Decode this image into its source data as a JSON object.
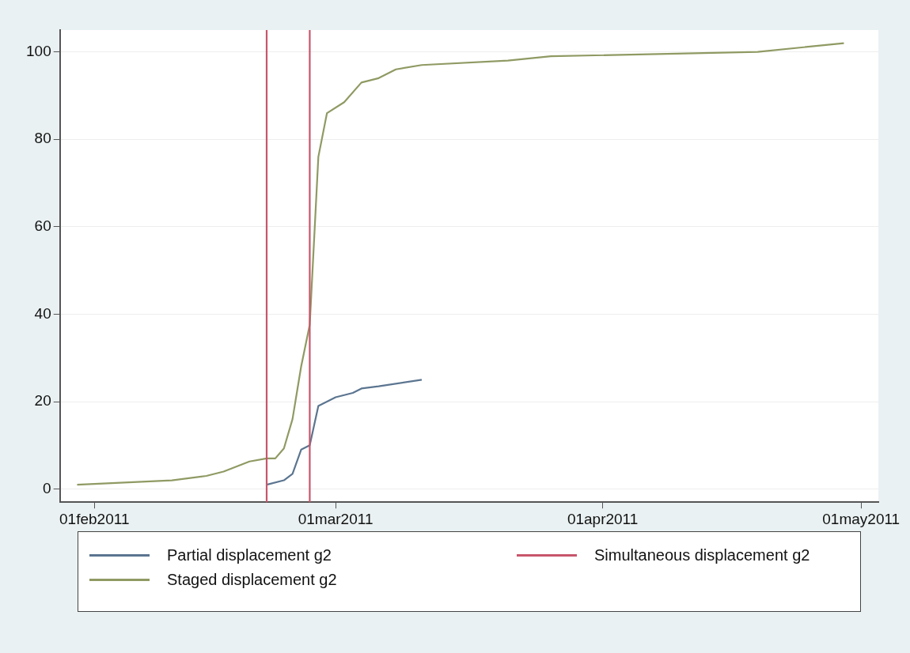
{
  "chart_data": {
    "type": "line",
    "xlim": [
      "2011-01-28",
      "2011-05-03"
    ],
    "xticks": [
      {
        "value": "2011-02-01",
        "label": "01feb2011"
      },
      {
        "value": "2011-03-01",
        "label": "01mar2011"
      },
      {
        "value": "2011-04-01",
        "label": "01apr2011"
      },
      {
        "value": "2011-05-01",
        "label": "01may2011"
      }
    ],
    "ylim": [
      -3,
      105
    ],
    "yticks": [
      0,
      20,
      40,
      60,
      80,
      100
    ],
    "grid": "y",
    "legend": "bottom",
    "marker": "none",
    "line_style": "solid",
    "series": [
      {
        "name": "Partial displacement g2",
        "color": "#5b7590",
        "x": [
          "2011-02-21",
          "2011-02-23",
          "2011-02-24",
          "2011-02-25",
          "2011-02-26",
          "2011-02-27",
          "2011-03-01",
          "2011-03-03",
          "2011-03-04",
          "2011-03-06",
          "2011-03-11"
        ],
        "values": [
          1,
          2,
          3.5,
          9,
          10,
          19,
          21,
          22,
          23,
          23.5,
          25
        ]
      },
      {
        "name": "Staged displacement g2",
        "color": "#8f9a63",
        "x": [
          "2011-01-30",
          "2011-02-10",
          "2011-02-14",
          "2011-02-16",
          "2011-02-19",
          "2011-02-21",
          "2011-02-22",
          "2011-02-23",
          "2011-02-24",
          "2011-02-25",
          "2011-02-26",
          "2011-02-27",
          "2011-02-28",
          "2011-03-02",
          "2011-03-04",
          "2011-03-06",
          "2011-03-08",
          "2011-03-11",
          "2011-03-21",
          "2011-03-26",
          "2011-04-19",
          "2011-04-29"
        ],
        "values": [
          1,
          2,
          3,
          4,
          6.3,
          7,
          7,
          9.3,
          16,
          28,
          37.6,
          76,
          86,
          88.5,
          93,
          94,
          96,
          97,
          98,
          99,
          100,
          102
        ]
      }
    ],
    "ref_lines": [
      {
        "axis": "x",
        "value": "2011-02-21",
        "label": "Simultaneous displacement g2",
        "color": "#c8566b"
      },
      {
        "axis": "x",
        "value": "2011-02-26",
        "color": "#c8566b"
      }
    ]
  }
}
